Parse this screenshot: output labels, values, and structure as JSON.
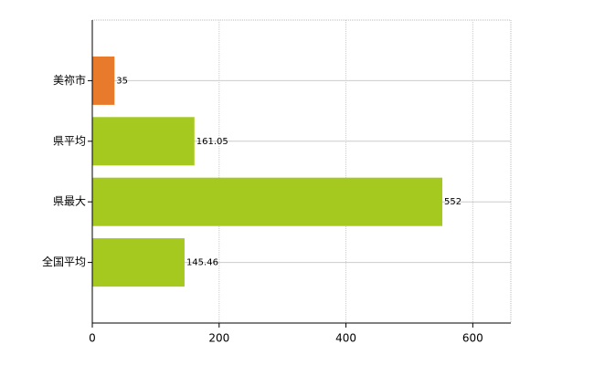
{
  "chart_data": {
    "type": "barh",
    "categories": [
      "美祢市",
      "県平均",
      "県最大",
      "全国平均"
    ],
    "values": [
      35,
      161.05,
      552,
      145.46
    ],
    "colors": [
      "#e87b2b",
      "#a5c91f",
      "#a5c91f",
      "#a5c91f"
    ],
    "xlim": [
      0,
      660
    ],
    "xticks": [
      0,
      200,
      400,
      600
    ],
    "grid": true
  }
}
